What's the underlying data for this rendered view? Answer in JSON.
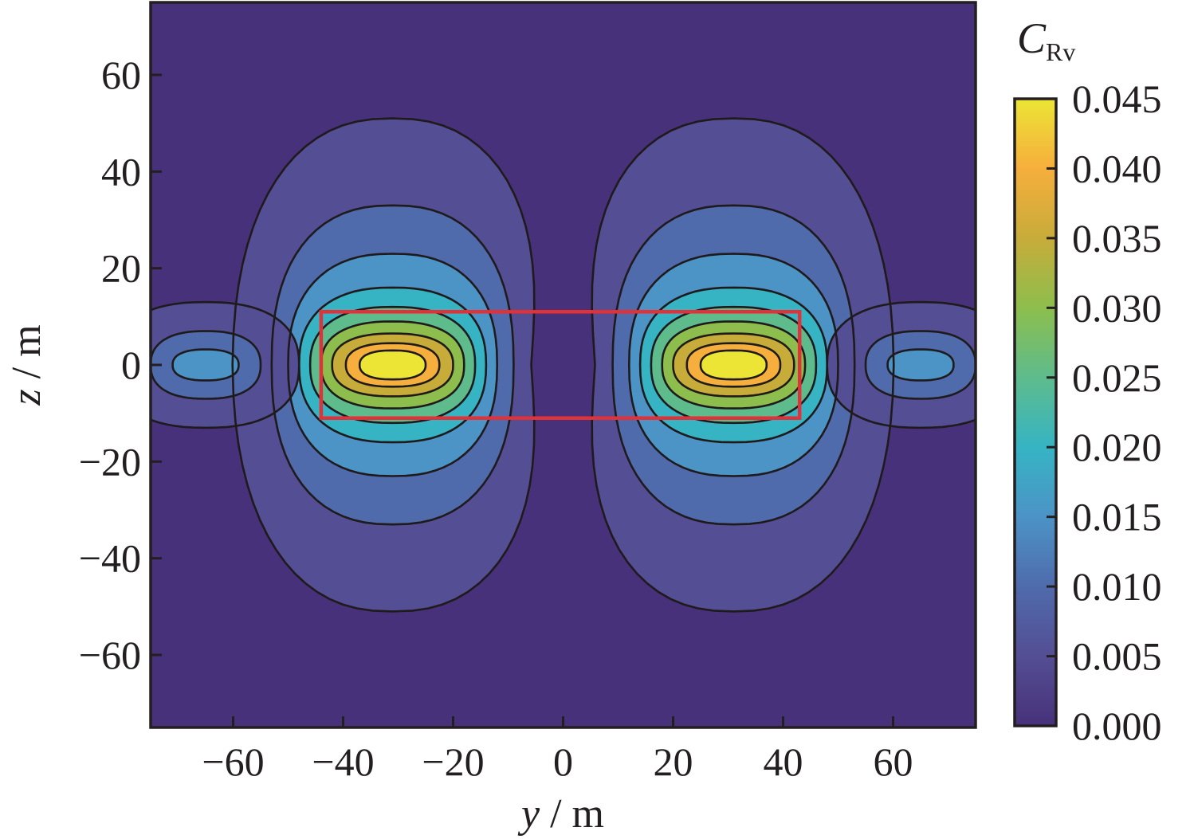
{
  "chart_data": {
    "type": "heatmap",
    "subtype": "filled-contour",
    "title": "",
    "xlabel": "y / m",
    "ylabel": "z / m",
    "xlabel_var": "y",
    "ylabel_var": "z",
    "unit": "m",
    "xlim": [
      -75,
      75
    ],
    "ylim": [
      -75,
      75
    ],
    "x_ticks": [
      -60,
      -40,
      -20,
      0,
      20,
      40,
      60
    ],
    "y_ticks": [
      -60,
      -40,
      -20,
      0,
      20,
      40,
      60
    ],
    "x_tick_labels": [
      "−60",
      "−40",
      "−20",
      "0",
      "20",
      "40",
      "60"
    ],
    "y_tick_labels": [
      "−60",
      "−40",
      "−20",
      "0",
      "20",
      "40",
      "60"
    ],
    "grid": false,
    "colorbar": {
      "label_main": "C",
      "label_sub": "Rv",
      "ticks": [
        0.0,
        0.005,
        0.01,
        0.015,
        0.02,
        0.025,
        0.03,
        0.035,
        0.04,
        0.045
      ],
      "tick_labels": [
        "0.000",
        "0.005",
        "0.010",
        "0.015",
        "0.020",
        "0.025",
        "0.030",
        "0.035",
        "0.040",
        "0.045"
      ],
      "range": [
        0.0,
        0.045
      ],
      "colormap": "viridis-like (purple to yellow)"
    },
    "levels": [
      0.0,
      0.005,
      0.01,
      0.015,
      0.02,
      0.025,
      0.03,
      0.035,
      0.04,
      0.045
    ],
    "level_colors": [
      "#47317a",
      "#544e94",
      "#4f6bac",
      "#4c93c6",
      "#36b4c4",
      "#5ebc8c",
      "#8dbe4d",
      "#c8ac3a",
      "#f6ae3c",
      "#ece536"
    ],
    "peaks": [
      {
        "y": -31,
        "z": 0,
        "value": 0.045
      },
      {
        "y": 31,
        "z": 0,
        "value": 0.045
      },
      {
        "y": -65,
        "z": 0,
        "value": 0.013
      },
      {
        "y": 65,
        "z": 0,
        "value": 0.013
      }
    ],
    "highlight_box": {
      "y": [
        -44,
        43
      ],
      "z": [
        -11,
        11
      ],
      "color": "#e03238"
    }
  }
}
